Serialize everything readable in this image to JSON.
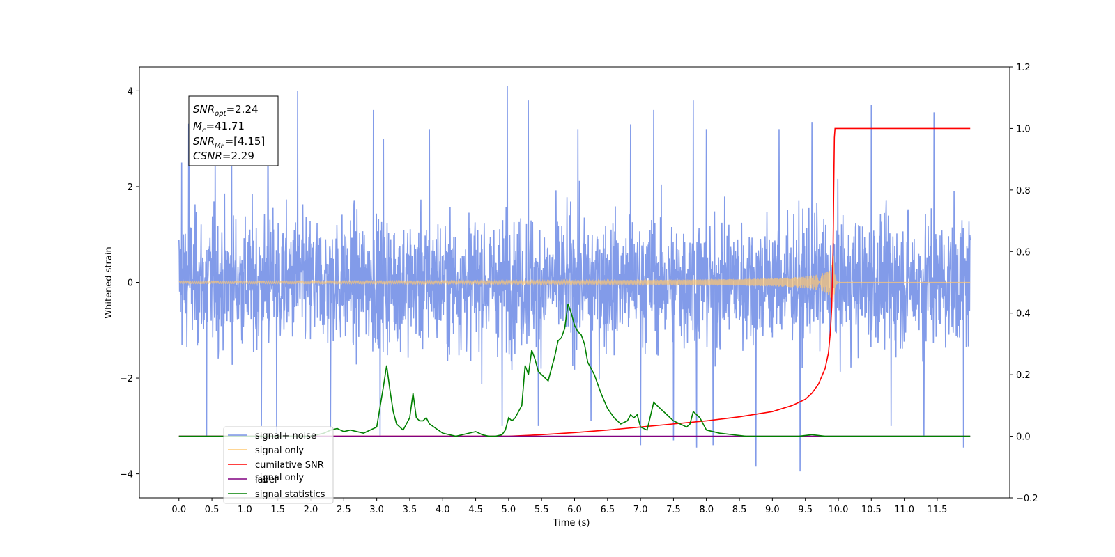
{
  "chart_data": {
    "type": "line",
    "xlabel": "Time (s)",
    "ylabel": "Whitened strain",
    "xticks": [
      "0.0",
      "0.5",
      "1.0",
      "1.5",
      "2.0",
      "2.5",
      "3.0",
      "3.5",
      "4.0",
      "4.5",
      "5.0",
      "5.5",
      "6.0",
      "6.5",
      "7.0",
      "7.5",
      "8.0",
      "8.0",
      "8.5",
      "9.0",
      "9.5",
      "10.0",
      "10.5",
      "11.0",
      "11.5"
    ],
    "xtick_values": [
      0.0,
      0.5,
      1.0,
      1.5,
      2.0,
      2.5,
      3.0,
      3.5,
      4.0,
      4.5,
      5.0,
      5.5,
      6.0,
      6.5,
      7.0,
      7.5,
      8.0,
      8.0,
      8.5,
      9.0,
      9.5,
      10.0,
      10.5,
      11.0,
      11.5
    ],
    "xlim": [
      -0.6,
      12.6
    ],
    "ylim_left": [
      -4.5,
      4.5
    ],
    "yticks_left": [
      "4",
      "2",
      "0",
      "−2",
      "−4"
    ],
    "ytick_left_values": [
      4,
      2,
      0,
      -2,
      -4
    ],
    "ylim_right": [
      -0.2,
      1.2
    ],
    "yticks_right": [
      "1.2",
      "1.0",
      "0.8",
      "0.6",
      "0.4",
      "0.2",
      "0.0",
      "−0.2"
    ],
    "ytick_right_values": [
      1.2,
      1.0,
      0.8,
      0.6,
      0.4,
      0.2,
      0.0,
      -0.2
    ],
    "annotation": {
      "lines": [
        {
          "base": "SNR",
          "sub": "opt",
          "rest": "=2.24"
        },
        {
          "base": "M",
          "sub": "c",
          "rest": "=41.71"
        },
        {
          "base": "SNR",
          "sub": "MF",
          "rest": "=[4.15]"
        },
        {
          "base": "CSNR",
          "sub": "",
          "rest": "=2.29"
        }
      ]
    },
    "legend": {
      "placement": "lower-left",
      "entries": [
        {
          "label": "signal+ noise",
          "color": "#7b96e8"
        },
        {
          "label": "signal only",
          "color": "#ffc870"
        },
        {
          "label": "cumilative SNR",
          "color": "#ff0000"
        },
        {
          "label": "label",
          "color": "#800080"
        },
        {
          "label": "signal statistics",
          "color": "#008000"
        }
      ],
      "hidden_text": "signal only"
    },
    "series": [
      {
        "name": "signal+ noise",
        "axis": "left",
        "color": "#7b96e8",
        "kind": "noise",
        "x_range": [
          0.0,
          12.0
        ],
        "envelope_core": [
          -1.7,
          1.7
        ],
        "spikes": [
          {
            "x": 0.04,
            "y": 2.5
          },
          {
            "x": 0.15,
            "y": 3.3
          },
          {
            "x": 0.42,
            "y": -3.2
          },
          {
            "x": 0.55,
            "y": 2.9
          },
          {
            "x": 0.8,
            "y": 3.2
          },
          {
            "x": 1.25,
            "y": -3.0
          },
          {
            "x": 1.35,
            "y": 3.0
          },
          {
            "x": 1.48,
            "y": -3.15
          },
          {
            "x": 1.8,
            "y": 4.0
          },
          {
            "x": 2.3,
            "y": -3.05
          },
          {
            "x": 2.95,
            "y": 3.6
          },
          {
            "x": 3.05,
            "y": -3.2
          },
          {
            "x": 3.1,
            "y": 3.0
          },
          {
            "x": 3.8,
            "y": 3.2
          },
          {
            "x": 4.9,
            "y": -3.0
          },
          {
            "x": 4.98,
            "y": 4.1
          },
          {
            "x": 5.3,
            "y": 3.8
          },
          {
            "x": 5.45,
            "y": -3.0
          },
          {
            "x": 6.05,
            "y": 3.2
          },
          {
            "x": 6.25,
            "y": -2.9
          },
          {
            "x": 6.85,
            "y": 3.3
          },
          {
            "x": 7.0,
            "y": -3.4
          },
          {
            "x": 7.2,
            "y": 3.6
          },
          {
            "x": 7.5,
            "y": -3.3
          },
          {
            "x": 7.8,
            "y": 3.8
          },
          {
            "x": 7.85,
            "y": -3.45
          },
          {
            "x": 8.0,
            "y": 3.2
          },
          {
            "x": 8.1,
            "y": -3.4
          },
          {
            "x": 8.75,
            "y": -3.85
          },
          {
            "x": 9.1,
            "y": 3.2
          },
          {
            "x": 9.42,
            "y": -3.95
          },
          {
            "x": 9.6,
            "y": 3.35
          },
          {
            "x": 10.5,
            "y": 3.7
          },
          {
            "x": 10.8,
            "y": -3.0
          },
          {
            "x": 11.3,
            "y": -3.2
          },
          {
            "x": 11.45,
            "y": 3.55
          },
          {
            "x": 11.9,
            "y": -3.45
          }
        ]
      },
      {
        "name": "signal only",
        "axis": "left",
        "color": "#ffc870",
        "kind": "chirp",
        "x_range": [
          0.0,
          12.0
        ],
        "merger_x": 9.93,
        "peak_amplitude": 0.6
      },
      {
        "name": "cumilative SNR",
        "axis": "right",
        "color": "#ff0000",
        "x": [
          0.0,
          3.0,
          4.0,
          5.0,
          5.5,
          6.0,
          6.5,
          7.0,
          7.5,
          8.0,
          8.5,
          9.0,
          9.3,
          9.5,
          9.6,
          9.7,
          9.8,
          9.85,
          9.88,
          9.9,
          9.92,
          9.93,
          9.94,
          9.95,
          12.0
        ],
        "values": [
          0.0,
          0.0,
          0.0,
          0.0,
          0.005,
          0.012,
          0.02,
          0.03,
          0.04,
          0.05,
          0.063,
          0.08,
          0.1,
          0.12,
          0.14,
          0.17,
          0.22,
          0.27,
          0.34,
          0.42,
          0.6,
          0.8,
          0.97,
          1.0,
          1.0
        ]
      },
      {
        "name": "label",
        "axis": "right",
        "color": "#800080",
        "x": [
          0.0,
          12.0
        ],
        "values": [
          0.0,
          0.0
        ]
      },
      {
        "name": "signal statistics",
        "axis": "right",
        "color": "#008000",
        "x": [
          0.0,
          2.0,
          2.2,
          2.3,
          2.4,
          2.5,
          2.6,
          2.7,
          2.8,
          2.9,
          3.0,
          3.1,
          3.15,
          3.2,
          3.25,
          3.3,
          3.4,
          3.5,
          3.55,
          3.6,
          3.65,
          3.7,
          3.75,
          3.8,
          4.0,
          4.2,
          4.4,
          4.5,
          4.55,
          4.6,
          4.7,
          4.8,
          4.9,
          4.95,
          5.0,
          5.05,
          5.1,
          5.2,
          5.25,
          5.3,
          5.35,
          5.4,
          5.45,
          5.5,
          5.6,
          5.7,
          5.75,
          5.8,
          5.85,
          5.9,
          5.95,
          6.0,
          6.05,
          6.1,
          6.15,
          6.2,
          6.25,
          6.3,
          6.4,
          6.5,
          6.6,
          6.7,
          6.8,
          6.85,
          6.9,
          6.95,
          7.0,
          7.1,
          7.2,
          7.3,
          7.4,
          7.5,
          7.6,
          7.7,
          7.75,
          7.8,
          7.9,
          8.0,
          8.2,
          8.4,
          8.6,
          9.0,
          9.4,
          9.6,
          9.8,
          12.0
        ],
        "values": [
          0.0,
          0.0,
          0.01,
          0.02,
          0.025,
          0.015,
          0.02,
          0.015,
          0.01,
          0.02,
          0.03,
          0.16,
          0.23,
          0.15,
          0.08,
          0.04,
          0.02,
          0.06,
          0.14,
          0.06,
          0.05,
          0.05,
          0.06,
          0.04,
          0.01,
          0.0,
          0.01,
          0.015,
          0.01,
          0.005,
          0.0,
          0.0,
          0.005,
          0.02,
          0.06,
          0.05,
          0.06,
          0.1,
          0.23,
          0.2,
          0.28,
          0.25,
          0.21,
          0.2,
          0.18,
          0.26,
          0.31,
          0.32,
          0.35,
          0.43,
          0.4,
          0.36,
          0.34,
          0.33,
          0.3,
          0.24,
          0.22,
          0.2,
          0.14,
          0.09,
          0.06,
          0.04,
          0.05,
          0.07,
          0.06,
          0.07,
          0.03,
          0.02,
          0.11,
          0.09,
          0.07,
          0.05,
          0.04,
          0.03,
          0.04,
          0.08,
          0.06,
          0.02,
          0.01,
          0.005,
          0.0,
          0.0,
          0.0,
          0.005,
          0.0,
          0.0
        ]
      }
    ]
  }
}
